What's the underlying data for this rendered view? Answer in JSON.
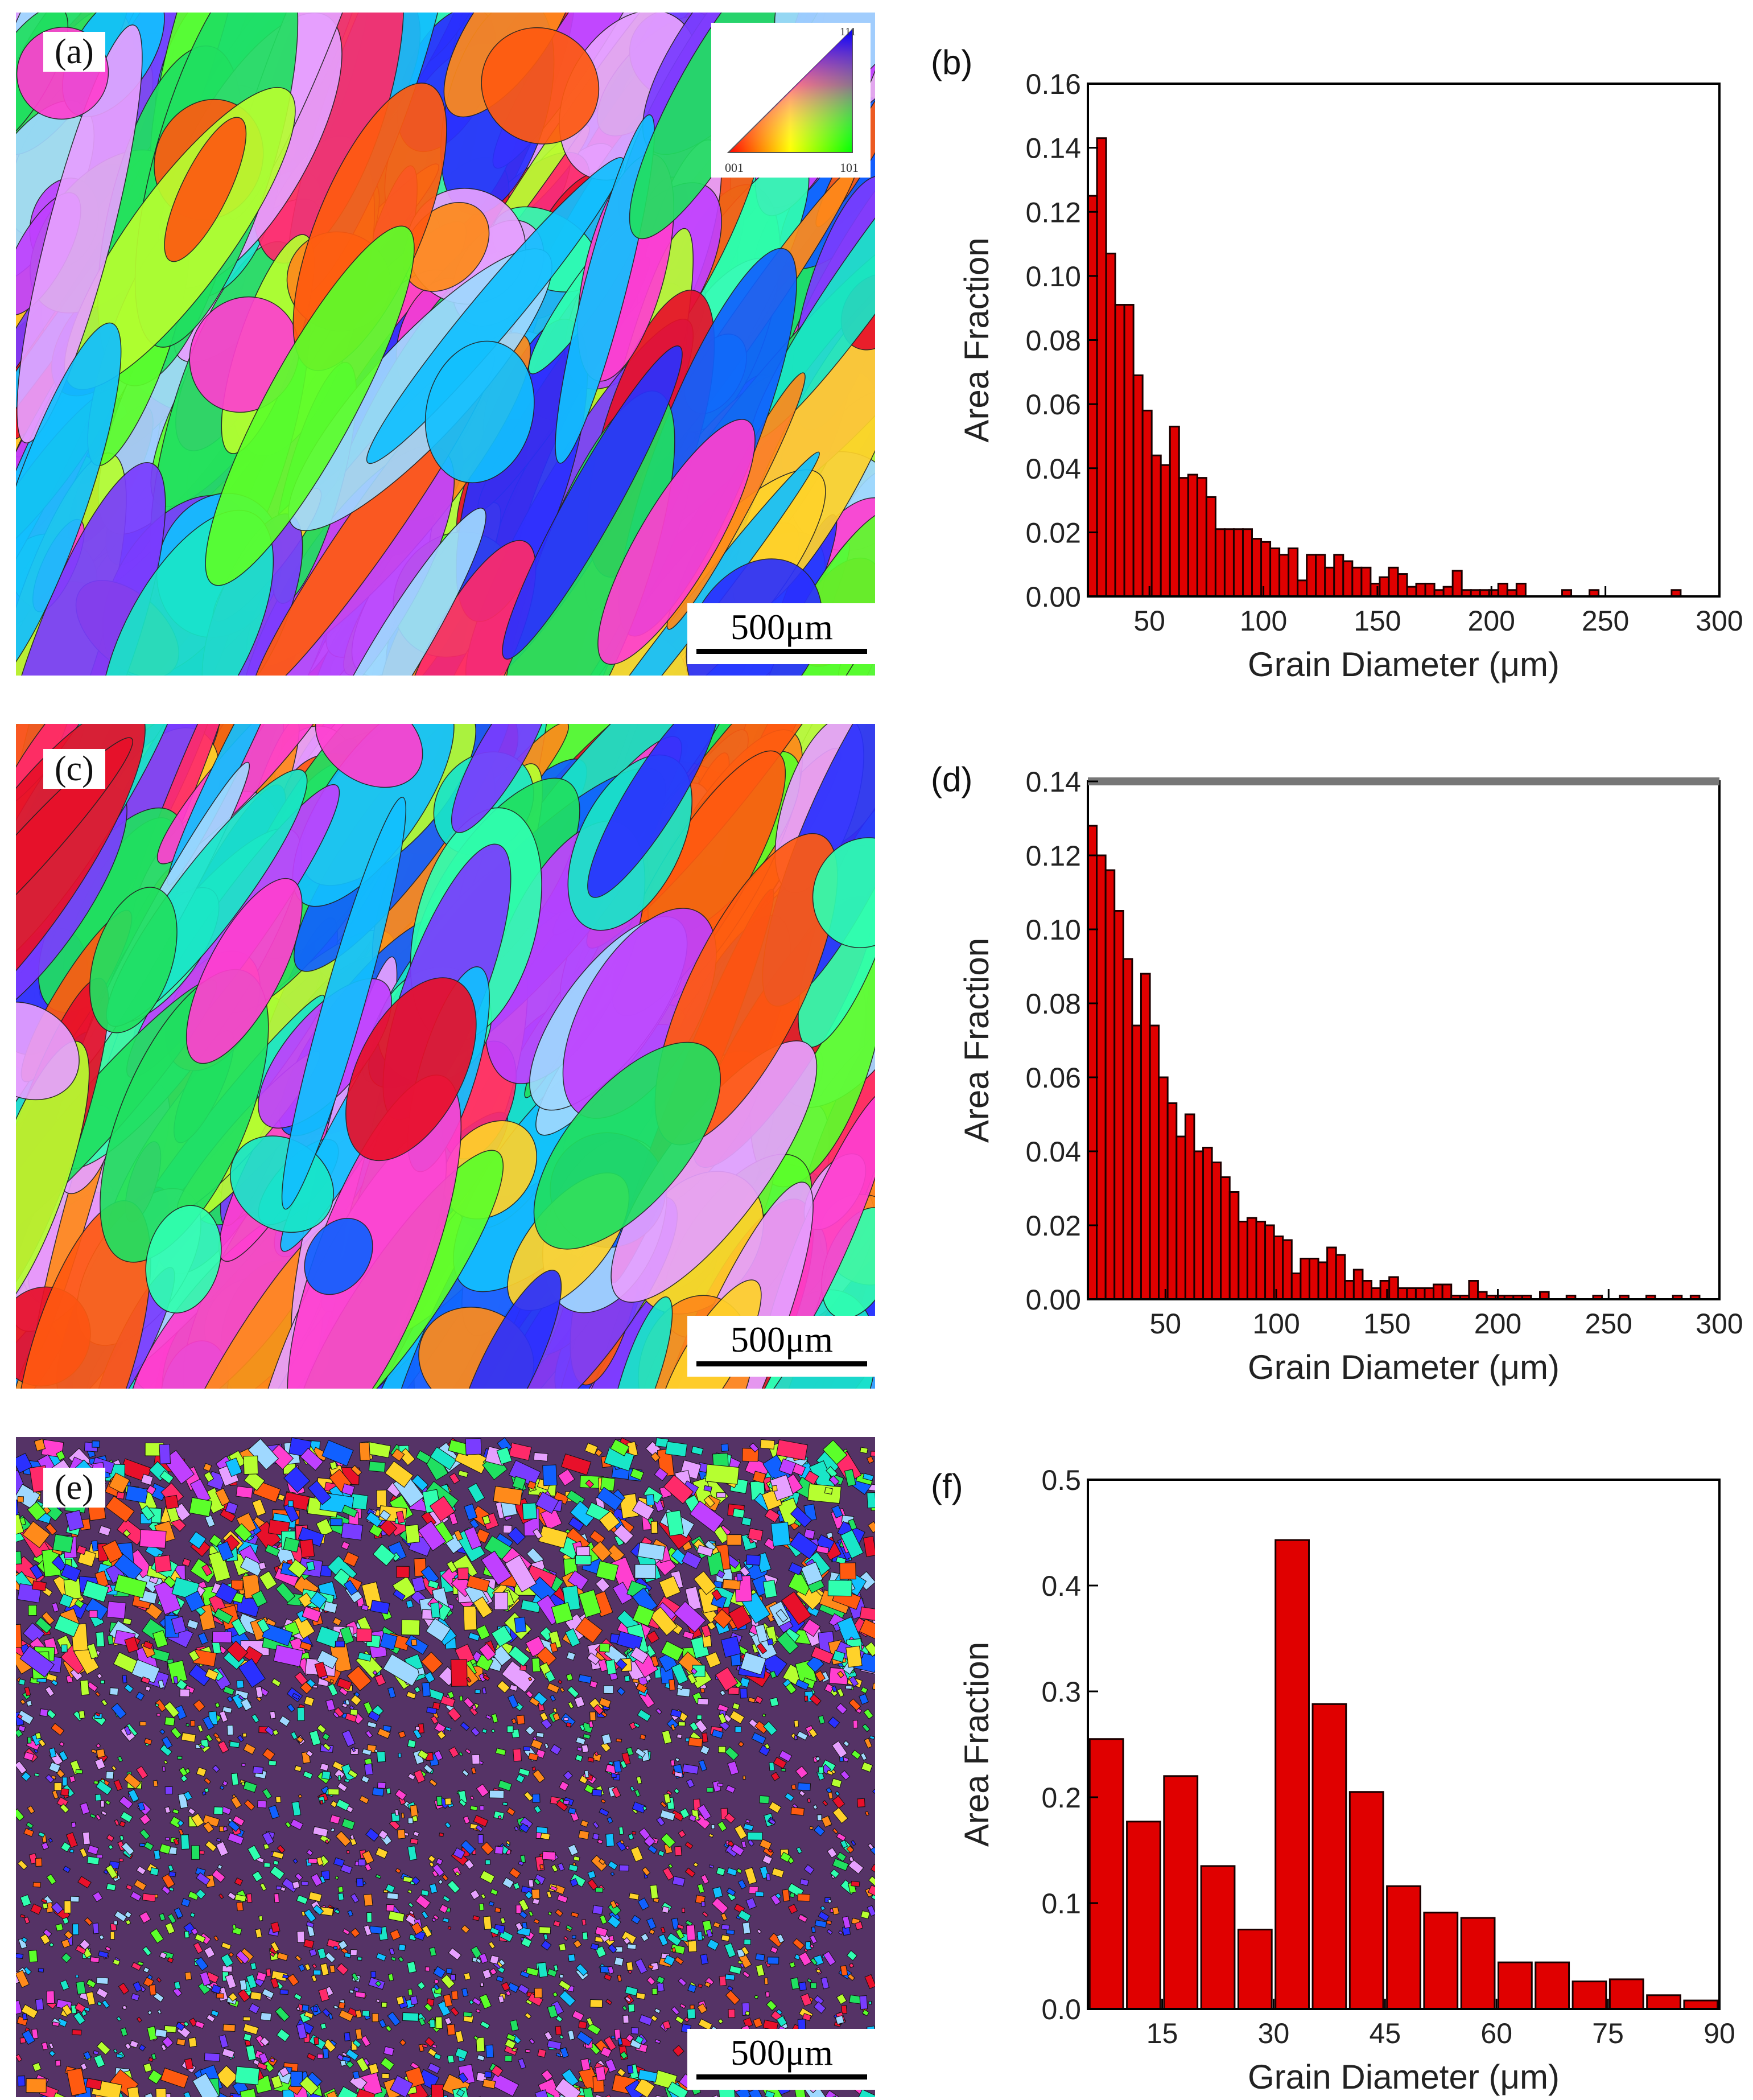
{
  "figure": {
    "panels": [
      {
        "label": "(a)",
        "scale_text": "500μm"
      },
      {
        "label": "(c)",
        "scale_text": "500μm"
      },
      {
        "label": "(e)",
        "scale_text": "500μm"
      }
    ],
    "ipf_key": {
      "corner_001": "001",
      "corner_101": "101",
      "corner_111": "111"
    },
    "colors": {
      "bar_fill": "#e00000",
      "bar_stroke": "#1a0000",
      "axis": "#000000"
    }
  },
  "chart_data": [
    {
      "panel_label": "(b)",
      "type": "bar",
      "title": "",
      "xlabel": "Grain Diameter (μm)",
      "ylabel": "Area Fraction",
      "xlim": [
        23,
        300
      ],
      "ylim": [
        0,
        0.16
      ],
      "xticks": [
        50,
        100,
        150,
        200,
        250,
        300
      ],
      "yticks": [
        0.0,
        0.02,
        0.04,
        0.06,
        0.08,
        0.1,
        0.12,
        0.14,
        0.16
      ],
      "bin_width": 4,
      "x": [
        25,
        29,
        33,
        37,
        41,
        45,
        49,
        53,
        57,
        61,
        65,
        69,
        73,
        77,
        81,
        85,
        89,
        93,
        97,
        101,
        105,
        109,
        113,
        117,
        121,
        125,
        129,
        133,
        137,
        141,
        145,
        149,
        153,
        157,
        161,
        165,
        169,
        173,
        177,
        181,
        185,
        189,
        193,
        197,
        201,
        205,
        209,
        213,
        233,
        245,
        281
      ],
      "values": [
        0.125,
        0.143,
        0.107,
        0.091,
        0.091,
        0.069,
        0.058,
        0.044,
        0.041,
        0.053,
        0.037,
        0.038,
        0.037,
        0.031,
        0.021,
        0.021,
        0.021,
        0.021,
        0.018,
        0.017,
        0.015,
        0.013,
        0.015,
        0.005,
        0.013,
        0.013,
        0.009,
        0.013,
        0.011,
        0.009,
        0.009,
        0.004,
        0.006,
        0.009,
        0.007,
        0.003,
        0.004,
        0.004,
        0.002,
        0.003,
        0.008,
        0.002,
        0.002,
        0.002,
        0.002,
        0.004,
        0.002,
        0.004,
        0.002,
        0.002,
        0.002
      ]
    },
    {
      "panel_label": "(d)",
      "type": "bar",
      "title": "",
      "xlabel": "Grain Diameter (μm)",
      "ylabel": "Area Fraction",
      "xlim": [
        15,
        300
      ],
      "ylim": [
        0,
        0.14
      ],
      "xticks": [
        50,
        100,
        150,
        200,
        250,
        300
      ],
      "yticks": [
        0.0,
        0.02,
        0.04,
        0.06,
        0.08,
        0.1,
        0.12,
        0.14
      ],
      "bin_width": 4,
      "x": [
        17,
        21,
        25,
        29,
        33,
        37,
        41,
        45,
        49,
        53,
        57,
        61,
        65,
        69,
        73,
        77,
        81,
        85,
        89,
        93,
        97,
        101,
        105,
        109,
        113,
        117,
        121,
        125,
        129,
        133,
        137,
        141,
        145,
        149,
        153,
        157,
        161,
        165,
        169,
        173,
        177,
        181,
        185,
        189,
        193,
        197,
        201,
        205,
        209,
        213,
        221,
        233,
        245,
        257,
        269,
        281,
        289
      ],
      "values": [
        0.128,
        0.12,
        0.116,
        0.105,
        0.092,
        0.074,
        0.088,
        0.074,
        0.06,
        0.053,
        0.044,
        0.05,
        0.04,
        0.041,
        0.037,
        0.033,
        0.029,
        0.021,
        0.022,
        0.021,
        0.02,
        0.017,
        0.016,
        0.007,
        0.011,
        0.011,
        0.01,
        0.014,
        0.012,
        0.005,
        0.008,
        0.005,
        0.003,
        0.005,
        0.006,
        0.003,
        0.003,
        0.003,
        0.003,
        0.004,
        0.004,
        0.001,
        0.001,
        0.005,
        0.002,
        0.001,
        0.001,
        0.001,
        0.001,
        0.001,
        0.002,
        0.001,
        0.001,
        0.001,
        0.001,
        0.001,
        0.001
      ]
    },
    {
      "panel_label": "(f)",
      "type": "bar",
      "title": "",
      "xlabel": "Grain Diameter (μm)",
      "ylabel": "Area Fraction",
      "xlim": [
        5,
        90
      ],
      "ylim": [
        0,
        0.5
      ],
      "xticks": [
        15,
        30,
        45,
        60,
        75,
        90
      ],
      "yticks": [
        0.0,
        0.1,
        0.2,
        0.3,
        0.4,
        0.5
      ],
      "bin_width": 4.5,
      "x": [
        7.5,
        12.5,
        17.5,
        22.5,
        27.5,
        32.5,
        37.5,
        42.5,
        47.5,
        52.5,
        57.5,
        62.5,
        67.5,
        72.5,
        77.5,
        82.5,
        87.5
      ],
      "values": [
        0.255,
        0.177,
        0.22,
        0.135,
        0.075,
        0.443,
        0.288,
        0.205,
        0.116,
        0.091,
        0.086,
        0.044,
        0.044,
        0.026,
        0.028,
        0.013,
        0.008
      ]
    }
  ]
}
